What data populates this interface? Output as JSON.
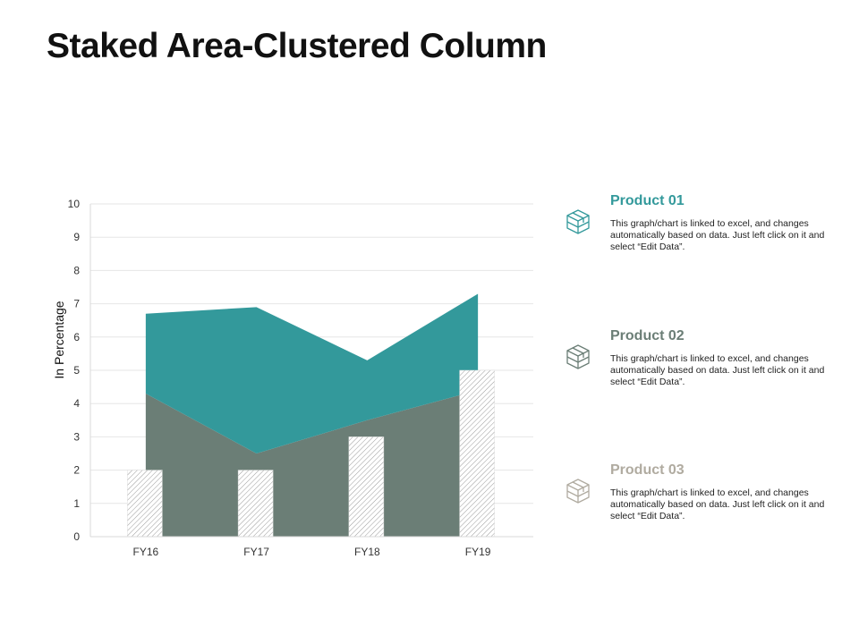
{
  "title": "Staked Area-Clustered Column",
  "colors": {
    "area_top": "#33999b",
    "area_bottom": "#6b7e76",
    "product_01": "#33999b",
    "product_02": "#6b7e76",
    "product_03": "#b0aba0",
    "grid": "#e6e6e6",
    "column_hatch": "#9a9a9a"
  },
  "chart_data": {
    "type": "area",
    "title": "Staked Area-Clustered Column",
    "categories": [
      "FY16",
      "FY17",
      "FY18",
      "FY19"
    ],
    "ylabel": "In Percentage",
    "xlabel": "",
    "ylim": [
      0,
      10
    ],
    "yticks": [
      "0",
      "1",
      "2",
      "3",
      "4",
      "5",
      "6",
      "7",
      "8",
      "9",
      "10"
    ],
    "grid": true,
    "series": [
      {
        "name": "Product 01",
        "type": "area",
        "values": [
          2.4,
          4.4,
          1.8,
          2.9
        ]
      },
      {
        "name": "Product 02",
        "type": "area",
        "values": [
          4.3,
          2.5,
          3.5,
          4.4
        ]
      },
      {
        "name": "Product 03",
        "type": "column",
        "values": [
          2,
          2,
          3,
          5
        ]
      }
    ]
  },
  "legend": [
    {
      "title": "Product 01",
      "description": "This graph/chart is linked to excel, and changes automatically based on data. Just left click on it and select “Edit Data”.",
      "icon": "box-icon"
    },
    {
      "title": "Product 02",
      "description": "This graph/chart is linked to excel, and changes automatically based on data. Just left click on it and select “Edit Data”.",
      "icon": "box-icon"
    },
    {
      "title": "Product 03",
      "description": "This graph/chart is linked to excel, and changes automatically based on data. Just left click on it and select “Edit Data”.",
      "icon": "box-icon"
    }
  ]
}
